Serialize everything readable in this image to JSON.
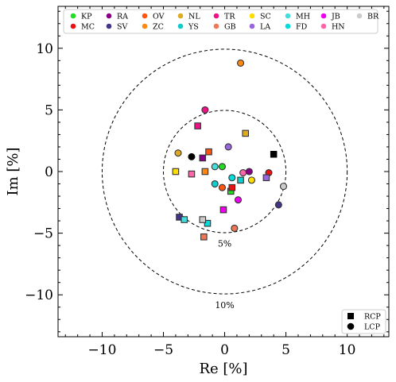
{
  "chart_data": {
    "type": "scatter",
    "xlabel": "Re [%]",
    "ylabel": "Im [%]",
    "xlim": [
      -13.6,
      13.4
    ],
    "ylim": [
      -13.4,
      13.4
    ],
    "xticks": [
      -10,
      -5,
      0,
      5,
      10
    ],
    "yticks": [
      -10,
      -5,
      0,
      5,
      10
    ],
    "xtick_labels": [
      "−10",
      "−5",
      "0",
      "5",
      "10"
    ],
    "ytick_labels": [
      "−10",
      "−5",
      "0",
      "5",
      "10"
    ],
    "reference_circles": [
      {
        "radius": 5,
        "label": "5%"
      },
      {
        "radius": 10,
        "label": "10%"
      }
    ],
    "series": [
      {
        "name": "KP",
        "color": "#22dd22",
        "rcp": [
          0.5,
          -1.6
        ],
        "lcp": [
          -0.2,
          0.4
        ]
      },
      {
        "name": "MC",
        "color": "#ee1111",
        "rcp": [
          0.6,
          -1.3
        ],
        "lcp": [
          3.6,
          -0.1
        ]
      },
      {
        "name": "RA",
        "color": "#880088",
        "rcp": [
          -1.8,
          1.1
        ],
        "lcp": [
          2.0,
          0.0
        ]
      },
      {
        "name": "SV",
        "color": "#443388",
        "rcp": [
          -3.7,
          -3.7
        ],
        "lcp": [
          4.4,
          -2.7
        ]
      },
      {
        "name": "OV",
        "color": "#ff5511",
        "rcp": [
          -1.3,
          1.6
        ],
        "lcp": [
          -0.2,
          -1.3
        ]
      },
      {
        "name": "ZC",
        "color": "#ff8811",
        "rcp": [
          -1.6,
          0.0
        ],
        "lcp": [
          1.3,
          8.8
        ]
      },
      {
        "name": "NL",
        "color": "#ddaa22",
        "rcp": [
          1.7,
          3.1
        ],
        "lcp": [
          -3.8,
          1.5
        ]
      },
      {
        "name": "YS",
        "color": "#11cccc",
        "rcp": [
          1.3,
          -0.7
        ],
        "lcp": [
          -0.8,
          -1.0
        ]
      },
      {
        "name": "TR",
        "color": "#ee1188",
        "rcp": [
          -2.2,
          3.7
        ],
        "lcp": [
          -1.6,
          5.0
        ]
      },
      {
        "name": "GB",
        "color": "#ee7755",
        "rcp": [
          -1.7,
          -5.3
        ],
        "lcp": [
          0.8,
          -4.6
        ]
      },
      {
        "name": "SC",
        "color": "#ffdd00",
        "rcp": [
          -4.0,
          0.0
        ],
        "lcp": [
          2.2,
          -0.7
        ]
      },
      {
        "name": "LA",
        "color": "#9966dd",
        "rcp": [
          3.4,
          -0.5
        ],
        "lcp": [
          0.3,
          2.0
        ]
      },
      {
        "name": "MH",
        "color": "#44dddd",
        "rcp": [
          -3.3,
          -3.9
        ],
        "lcp": [
          -0.8,
          0.4
        ]
      },
      {
        "name": "FD",
        "color": "#00dddd",
        "rcp": [
          -1.4,
          -4.2
        ],
        "lcp": [
          0.6,
          -0.5
        ]
      },
      {
        "name": "JB",
        "color": "#ee00ee",
        "rcp": [
          -0.1,
          -3.1
        ],
        "lcp": [
          1.1,
          -2.3
        ]
      },
      {
        "name": "HN",
        "color": "#ff66aa",
        "rcp": [
          -2.7,
          -0.2
        ],
        "lcp": [
          1.5,
          -0.1
        ]
      },
      {
        "name": "BR",
        "color": "#cccccc",
        "rcp": [
          -1.8,
          -3.9
        ],
        "lcp": [
          4.8,
          -1.2
        ]
      }
    ],
    "black_lcp": [
      -2.7,
      1.2
    ],
    "black_rcp": [
      4.0,
      1.4
    ],
    "legend_rows": [
      [
        "KP",
        "RA",
        "OV",
        "NL",
        "TR",
        "SC",
        "MH",
        "JB",
        "BR"
      ],
      [
        "MC",
        "SV",
        "ZC",
        "YS",
        "GB",
        "LA",
        "FD",
        "HN"
      ]
    ],
    "legend_position": "top",
    "marker_legend": [
      {
        "label": "RCP",
        "marker": "square"
      },
      {
        "label": "LCP",
        "marker": "circle"
      }
    ],
    "marker_legend_position": "bottom-right",
    "grid": false
  }
}
